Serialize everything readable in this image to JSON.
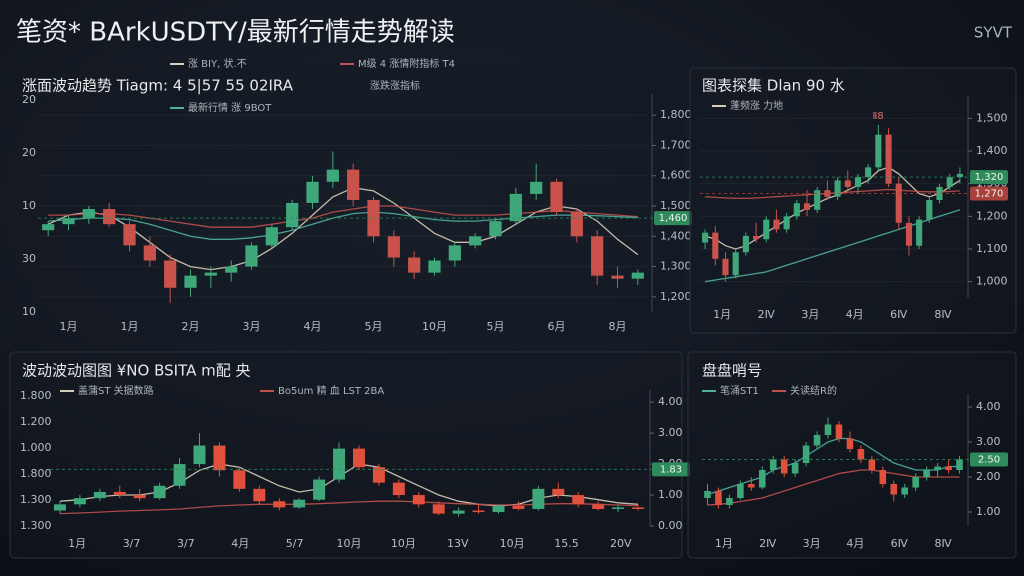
{
  "title": "笔资* BArkUSDTY/最新行情走势解读",
  "logo": "SYVT",
  "chart_data": [
    {
      "type": "candlestick",
      "title": "涨面波动趋势 Tiagm: 4 5|57 55 02IRA",
      "subtitle": "涨跌涨指标",
      "up_color": "#3fa87a",
      "down_color": "#c9524c",
      "grid": true,
      "ylim": [
        1150,
        1850
      ],
      "yticks": [
        {
          "value": 1200,
          "label": "1,200"
        },
        {
          "value": 1300,
          "label": "1,300"
        },
        {
          "value": 1400,
          "label": "1,400"
        },
        {
          "value": 1500,
          "label": "1,500"
        },
        {
          "value": 1600,
          "label": "1,600"
        },
        {
          "value": 1700,
          "label": "1,700"
        },
        {
          "value": 1800,
          "label": "1,800"
        }
      ],
      "left_labels": [
        "20",
        "20",
        "10",
        "30",
        "10"
      ],
      "x_labels": [
        "1月",
        "1月",
        "2月",
        "3月",
        "4月",
        "5月",
        "10月",
        "5月",
        "6月",
        "8月"
      ],
      "candles": [
        [
          1420,
          1450,
          1400,
          1440
        ],
        [
          1440,
          1470,
          1420,
          1460
        ],
        [
          1460,
          1500,
          1440,
          1490
        ],
        [
          1490,
          1510,
          1430,
          1440
        ],
        [
          1440,
          1450,
          1350,
          1370
        ],
        [
          1370,
          1400,
          1300,
          1320
        ],
        [
          1320,
          1340,
          1180,
          1230
        ],
        [
          1230,
          1290,
          1200,
          1270
        ],
        [
          1270,
          1300,
          1230,
          1280
        ],
        [
          1280,
          1320,
          1250,
          1300
        ],
        [
          1300,
          1380,
          1290,
          1370
        ],
        [
          1370,
          1440,
          1360,
          1430
        ],
        [
          1430,
          1520,
          1420,
          1510
        ],
        [
          1510,
          1600,
          1490,
          1580
        ],
        [
          1580,
          1680,
          1560,
          1620
        ],
        [
          1620,
          1640,
          1500,
          1520
        ],
        [
          1520,
          1530,
          1380,
          1400
        ],
        [
          1400,
          1420,
          1300,
          1330
        ],
        [
          1330,
          1350,
          1260,
          1280
        ],
        [
          1280,
          1330,
          1270,
          1320
        ],
        [
          1320,
          1380,
          1300,
          1370
        ],
        [
          1370,
          1410,
          1360,
          1400
        ],
        [
          1400,
          1460,
          1390,
          1450
        ],
        [
          1450,
          1560,
          1440,
          1540
        ],
        [
          1540,
          1640,
          1520,
          1580
        ],
        [
          1580,
          1590,
          1470,
          1480
        ],
        [
          1480,
          1490,
          1380,
          1400
        ],
        [
          1400,
          1420,
          1240,
          1270
        ],
        [
          1270,
          1300,
          1230,
          1260
        ],
        [
          1260,
          1290,
          1240,
          1280
        ]
      ],
      "series": [
        {
          "name": "涨 BIY, 状.不",
          "color": "#d8cdb8",
          "values": [
            1440,
            1470,
            1480,
            1470,
            1430,
            1380,
            1330,
            1300,
            1290,
            1300,
            1320,
            1360,
            1410,
            1470,
            1530,
            1560,
            1550,
            1510,
            1460,
            1410,
            1380,
            1380,
            1400,
            1440,
            1480,
            1500,
            1490,
            1450,
            1390,
            1340
          ]
        },
        {
          "name": "M级 4 涨情附指标 T4",
          "color": "#c0504d",
          "values": [
            1470,
            1470,
            1475,
            1475,
            1470,
            1460,
            1450,
            1440,
            1430,
            1430,
            1430,
            1440,
            1450,
            1460,
            1480,
            1490,
            1500,
            1500,
            1490,
            1480,
            1470,
            1470,
            1470,
            1475,
            1480,
            1485,
            1480,
            1475,
            1470,
            1465
          ]
        },
        {
          "name": "最新行情 涨 9BOT",
          "color": "#4fb0a0",
          "values": [
            1450,
            1455,
            1460,
            1460,
            1455,
            1440,
            1420,
            1400,
            1390,
            1390,
            1395,
            1405,
            1420,
            1440,
            1460,
            1475,
            1480,
            1475,
            1465,
            1455,
            1450,
            1450,
            1455,
            1460,
            1465,
            1470,
            1470,
            1468,
            1465,
            1462
          ]
        }
      ],
      "tags": [
        {
          "value": 1460,
          "label": "1,460",
          "color": "#2f8a5c"
        }
      ]
    },
    {
      "type": "candlestick",
      "title": "图表探集 Dlan 90 水",
      "marker_label": "Ⅱ8",
      "up_color": "#3fa87a",
      "down_color": "#c9524c",
      "grid": true,
      "ylim": [
        950,
        1550
      ],
      "yticks": [
        {
          "value": 1000,
          "label": "1,000"
        },
        {
          "value": 1100,
          "label": "1,100"
        },
        {
          "value": 1200,
          "label": "1,200"
        },
        {
          "value": 1300,
          "label": "1,300"
        },
        {
          "value": 1400,
          "label": "1,400"
        },
        {
          "value": 1500,
          "label": "1,500"
        }
      ],
      "x_labels": [
        "1月",
        "2Ⅳ",
        "3月",
        "4月",
        "6Ⅳ",
        "8Ⅳ"
      ],
      "candles": [
        [
          1120,
          1160,
          1100,
          1150
        ],
        [
          1150,
          1170,
          1050,
          1070
        ],
        [
          1070,
          1090,
          1000,
          1020
        ],
        [
          1020,
          1100,
          1010,
          1090
        ],
        [
          1090,
          1150,
          1080,
          1140
        ],
        [
          1140,
          1180,
          1120,
          1130
        ],
        [
          1130,
          1200,
          1120,
          1190
        ],
        [
          1190,
          1220,
          1150,
          1160
        ],
        [
          1160,
          1210,
          1150,
          1200
        ],
        [
          1200,
          1250,
          1190,
          1240
        ],
        [
          1240,
          1280,
          1200,
          1220
        ],
        [
          1220,
          1290,
          1210,
          1280
        ],
        [
          1280,
          1310,
          1250,
          1260
        ],
        [
          1260,
          1320,
          1250,
          1310
        ],
        [
          1310,
          1340,
          1280,
          1290
        ],
        [
          1290,
          1330,
          1270,
          1320
        ],
        [
          1320,
          1360,
          1300,
          1350
        ],
        [
          1350,
          1480,
          1340,
          1450
        ],
        [
          1450,
          1470,
          1290,
          1300
        ],
        [
          1300,
          1320,
          1160,
          1180
        ],
        [
          1180,
          1200,
          1080,
          1110
        ],
        [
          1110,
          1200,
          1100,
          1190
        ],
        [
          1190,
          1260,
          1180,
          1250
        ],
        [
          1250,
          1300,
          1240,
          1290
        ],
        [
          1290,
          1330,
          1280,
          1320
        ],
        [
          1320,
          1350,
          1300,
          1330
        ]
      ],
      "series": [
        {
          "name": "蓬频涨 力地",
          "color": "#d8cdb8",
          "values": [
            1140,
            1130,
            1110,
            1100,
            1110,
            1130,
            1150,
            1170,
            1190,
            1210,
            1225,
            1240,
            1255,
            1265,
            1280,
            1295,
            1310,
            1340,
            1350,
            1330,
            1300,
            1270,
            1260,
            1270,
            1290,
            1310
          ]
        },
        {
          "color": "#4fb0a0",
          "values": [
            1000,
            1005,
            1010,
            1015,
            1020,
            1025,
            1030,
            1040,
            1050,
            1060,
            1070,
            1080,
            1090,
            1100,
            1110,
            1120,
            1130,
            1140,
            1150,
            1160,
            1170,
            1180,
            1190,
            1200,
            1210,
            1220
          ]
        },
        {
          "color": "#c0504d",
          "values": [
            1260,
            1258,
            1256,
            1255,
            1255,
            1256,
            1258,
            1260,
            1262,
            1264,
            1266,
            1268,
            1270,
            1272,
            1274,
            1276,
            1278,
            1280,
            1282,
            1280,
            1278,
            1276,
            1275,
            1275,
            1276,
            1278
          ]
        }
      ],
      "tags": [
        {
          "value": 1320,
          "label": "1,320",
          "color": "#2f8a5c"
        },
        {
          "value": 1270,
          "label": "1,270",
          "color": "#a8403b"
        }
      ]
    },
    {
      "type": "candlestick",
      "title": "波动波动图图 ¥NO BSITA m配 央",
      "up_color": "#3fa87a",
      "down_color": "#e0503c",
      "grid": false,
      "ylim": [
        0,
        4.2
      ],
      "yticks": [
        {
          "value": 0,
          "label": "0.00"
        },
        {
          "value": 1,
          "label": "1.00"
        },
        {
          "value": 2,
          "label": "2.00"
        },
        {
          "value": 3,
          "label": "3.00"
        },
        {
          "value": 4,
          "label": "4.00"
        }
      ],
      "left_labels": [
        "1.800",
        "1.200",
        "1.000",
        "1.800",
        "1.300",
        "1.300"
      ],
      "x_labels": [
        "1月",
        "3/7",
        "3/7",
        "4月",
        "5/7",
        "10月",
        "10月",
        "13V",
        "10月",
        "15.5",
        "20V"
      ],
      "candles": [
        [
          0.5,
          0.8,
          0.4,
          0.7
        ],
        [
          0.7,
          1.0,
          0.6,
          0.9
        ],
        [
          0.9,
          1.2,
          0.8,
          1.1
        ],
        [
          1.1,
          1.3,
          0.9,
          1.0
        ],
        [
          1.0,
          1.2,
          0.8,
          0.9
        ],
        [
          0.9,
          1.4,
          0.85,
          1.3
        ],
        [
          1.3,
          2.2,
          1.2,
          2.0
        ],
        [
          2.0,
          3.0,
          1.9,
          2.6
        ],
        [
          2.6,
          2.7,
          1.6,
          1.8
        ],
        [
          1.8,
          1.9,
          1.1,
          1.2
        ],
        [
          1.2,
          1.3,
          0.7,
          0.8
        ],
        [
          0.8,
          0.9,
          0.5,
          0.6
        ],
        [
          0.6,
          0.9,
          0.55,
          0.85
        ],
        [
          0.85,
          1.6,
          0.8,
          1.5
        ],
        [
          1.5,
          2.7,
          1.4,
          2.5
        ],
        [
          2.5,
          2.6,
          1.8,
          1.9
        ],
        [
          1.9,
          2.0,
          1.3,
          1.4
        ],
        [
          1.4,
          1.5,
          0.9,
          1.0
        ],
        [
          1.0,
          1.1,
          0.6,
          0.7
        ],
        [
          0.7,
          0.8,
          0.35,
          0.4
        ],
        [
          0.4,
          0.6,
          0.3,
          0.5
        ],
        [
          0.5,
          0.7,
          0.4,
          0.45
        ],
        [
          0.45,
          0.7,
          0.4,
          0.65
        ],
        [
          0.65,
          0.8,
          0.5,
          0.55
        ],
        [
          0.55,
          1.3,
          0.5,
          1.2
        ],
        [
          1.2,
          1.4,
          0.9,
          1.0
        ],
        [
          1.0,
          1.1,
          0.6,
          0.7
        ],
        [
          0.7,
          0.8,
          0.5,
          0.55
        ],
        [
          0.55,
          0.7,
          0.45,
          0.6
        ],
        [
          0.6,
          0.7,
          0.5,
          0.55
        ]
      ],
      "series": [
        {
          "name": "盖蒲ST 关据数路",
          "color": "#d8cdb8",
          "values": [
            0.8,
            0.85,
            0.95,
            1.0,
            1.0,
            1.1,
            1.4,
            1.8,
            2.0,
            1.9,
            1.6,
            1.3,
            1.1,
            1.2,
            1.6,
            2.0,
            1.9,
            1.6,
            1.3,
            1.0,
            0.8,
            0.7,
            0.65,
            0.7,
            0.9,
            1.0,
            0.95,
            0.85,
            0.75,
            0.7
          ]
        },
        {
          "name": "Bo5um 精 血 LST 2BA",
          "color": "#c0504d",
          "values": [
            0.4,
            0.42,
            0.45,
            0.48,
            0.5,
            0.52,
            0.55,
            0.6,
            0.65,
            0.68,
            0.7,
            0.7,
            0.7,
            0.72,
            0.75,
            0.78,
            0.8,
            0.8,
            0.78,
            0.75,
            0.72,
            0.7,
            0.68,
            0.68,
            0.7,
            0.72,
            0.72,
            0.7,
            0.68,
            0.66
          ]
        }
      ],
      "tags": [
        {
          "value": 1.83,
          "label": "1.83",
          "color": "#2f8a5c"
        }
      ]
    },
    {
      "type": "candlestick",
      "title": "盘盘哨号",
      "up_color": "#3fa87a",
      "down_color": "#e0503c",
      "grid": false,
      "ylim": [
        0.6,
        4.2
      ],
      "yticks": [
        {
          "value": 1,
          "label": "1.00"
        },
        {
          "value": 2,
          "label": "2.00"
        },
        {
          "value": 3,
          "label": "3.00"
        },
        {
          "value": 4,
          "label": "4.00"
        }
      ],
      "x_labels": [
        "1月",
        "2Ⅳ",
        "3月",
        "4月",
        "6Ⅳ",
        "8Ⅳ"
      ],
      "candles": [
        [
          1.4,
          1.8,
          1.2,
          1.6
        ],
        [
          1.6,
          1.7,
          1.1,
          1.2
        ],
        [
          1.2,
          1.5,
          1.1,
          1.4
        ],
        [
          1.4,
          1.9,
          1.35,
          1.8
        ],
        [
          1.8,
          2.0,
          1.6,
          1.7
        ],
        [
          1.7,
          2.3,
          1.65,
          2.2
        ],
        [
          2.2,
          2.6,
          2.1,
          2.5
        ],
        [
          2.5,
          2.6,
          2.0,
          2.1
        ],
        [
          2.1,
          2.5,
          2.0,
          2.4
        ],
        [
          2.4,
          3.0,
          2.3,
          2.9
        ],
        [
          2.9,
          3.3,
          2.8,
          3.2
        ],
        [
          3.2,
          3.7,
          3.1,
          3.5
        ],
        [
          3.5,
          3.6,
          3.0,
          3.1
        ],
        [
          3.1,
          3.3,
          2.7,
          2.8
        ],
        [
          2.8,
          2.9,
          2.4,
          2.5
        ],
        [
          2.5,
          2.6,
          2.1,
          2.2
        ],
        [
          2.2,
          2.3,
          1.7,
          1.8
        ],
        [
          1.8,
          1.9,
          1.3,
          1.5
        ],
        [
          1.5,
          1.8,
          1.4,
          1.7
        ],
        [
          1.7,
          2.1,
          1.6,
          2.0
        ],
        [
          2.0,
          2.3,
          1.9,
          2.2
        ],
        [
          2.2,
          2.4,
          2.0,
          2.3
        ],
        [
          2.3,
          2.5,
          2.1,
          2.2
        ],
        [
          2.2,
          2.6,
          2.1,
          2.5
        ]
      ],
      "series": [
        {
          "name": "笔涌ST1",
          "color": "#4fb0a0",
          "values": [
            1.5,
            1.6,
            1.7,
            1.8,
            1.9,
            2.0,
            2.2,
            2.3,
            2.4,
            2.6,
            2.8,
            3.0,
            3.1,
            3.1,
            3.0,
            2.8,
            2.6,
            2.4,
            2.3,
            2.2,
            2.2,
            2.2,
            2.3,
            2.3
          ]
        },
        {
          "name": "关读结R的",
          "color": "#c0504d",
          "values": [
            1.2,
            1.22,
            1.25,
            1.3,
            1.35,
            1.4,
            1.5,
            1.6,
            1.7,
            1.8,
            1.9,
            2.0,
            2.1,
            2.15,
            2.2,
            2.2,
            2.15,
            2.1,
            2.05,
            2.0,
            2.0,
            2.0,
            2.0,
            2.0
          ]
        }
      ],
      "tags": [
        {
          "value": 2.5,
          "label": "2.50",
          "color": "#2f8a5c"
        }
      ]
    }
  ]
}
